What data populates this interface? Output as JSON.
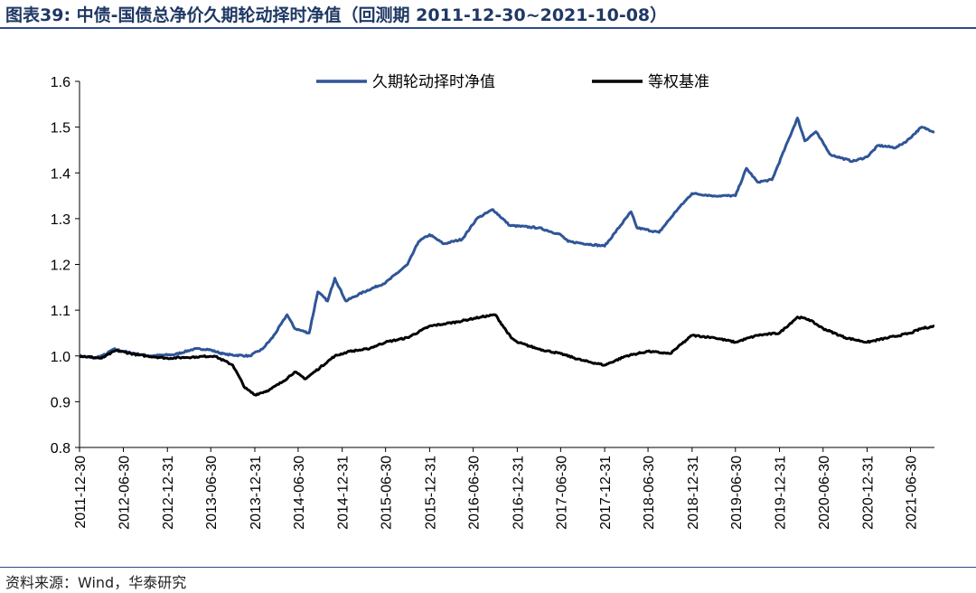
{
  "header": {
    "title": "图表39:  中债-国债总净价久期轮动择时净值（回测期 2011-12-30~2021-10-08）"
  },
  "footer": {
    "source": "资料来源：Wind，华泰研究"
  },
  "colors": {
    "strategy": "#2f5597",
    "benchmark": "#000000",
    "rule": "#2e4a8b"
  },
  "chart_data": {
    "type": "line",
    "title": "",
    "xlabel": "",
    "ylabel": "",
    "ylim": [
      0.8,
      1.6
    ],
    "yticks": [
      "0.8",
      "0.9",
      "1.0",
      "1.1",
      "1.2",
      "1.3",
      "1.4",
      "1.5",
      "1.6"
    ],
    "xlim": [
      "2011-12-30",
      "2021-10-08"
    ],
    "xticks": [
      "2011-12-30",
      "2012-06-30",
      "2012-12-31",
      "2013-06-30",
      "2013-12-31",
      "2014-06-30",
      "2014-12-31",
      "2015-06-30",
      "2015-12-31",
      "2016-06-30",
      "2016-12-31",
      "2017-06-30",
      "2017-12-31",
      "2018-06-30",
      "2018-12-31",
      "2019-06-30",
      "2019-12-31",
      "2020-06-30",
      "2020-12-31",
      "2021-06-30"
    ],
    "legend_position": "top",
    "series": [
      {
        "name": "久期轮动择时净值",
        "points": [
          [
            "2011-12-30",
            1.0
          ],
          [
            "2012-02-28",
            0.995
          ],
          [
            "2012-04-15",
            1.003
          ],
          [
            "2012-05-20",
            1.015
          ],
          [
            "2012-07-20",
            1.008
          ],
          [
            "2012-10-15",
            1.0
          ],
          [
            "2013-01-31",
            1.003
          ],
          [
            "2013-04-20",
            1.015
          ],
          [
            "2013-06-15",
            1.015
          ],
          [
            "2013-09-01",
            1.003
          ],
          [
            "2013-12-10",
            1.0
          ],
          [
            "2014-01-31",
            1.015
          ],
          [
            "2014-03-15",
            1.04
          ],
          [
            "2014-05-15",
            1.09
          ],
          [
            "2014-06-15",
            1.06
          ],
          [
            "2014-08-15",
            1.05
          ],
          [
            "2014-09-20",
            1.14
          ],
          [
            "2014-10-31",
            1.12
          ],
          [
            "2014-11-30",
            1.17
          ],
          [
            "2015-01-15",
            1.12
          ],
          [
            "2015-03-31",
            1.14
          ],
          [
            "2015-06-30",
            1.16
          ],
          [
            "2015-09-30",
            1.2
          ],
          [
            "2015-11-15",
            1.25
          ],
          [
            "2015-12-31",
            1.265
          ],
          [
            "2016-02-28",
            1.245
          ],
          [
            "2016-05-15",
            1.255
          ],
          [
            "2016-07-15",
            1.3
          ],
          [
            "2016-09-20",
            1.32
          ],
          [
            "2016-11-30",
            1.285
          ],
          [
            "2017-03-31",
            1.28
          ],
          [
            "2017-06-30",
            1.265
          ],
          [
            "2017-07-31",
            1.25
          ],
          [
            "2017-12-31",
            1.24
          ],
          [
            "2018-04-20",
            1.315
          ],
          [
            "2018-05-15",
            1.28
          ],
          [
            "2018-08-15",
            1.27
          ],
          [
            "2018-10-31",
            1.32
          ],
          [
            "2018-12-31",
            1.355
          ],
          [
            "2019-03-31",
            1.35
          ],
          [
            "2019-06-30",
            1.35
          ],
          [
            "2019-08-15",
            1.41
          ],
          [
            "2019-09-30",
            1.38
          ],
          [
            "2019-11-30",
            1.385
          ],
          [
            "2020-03-15",
            1.52
          ],
          [
            "2020-04-15",
            1.47
          ],
          [
            "2020-05-31",
            1.49
          ],
          [
            "2020-07-31",
            1.44
          ],
          [
            "2020-10-31",
            1.425
          ],
          [
            "2020-12-31",
            1.435
          ],
          [
            "2021-02-15",
            1.46
          ],
          [
            "2021-04-30",
            1.455
          ],
          [
            "2021-06-15",
            1.47
          ],
          [
            "2021-08-15",
            1.5
          ],
          [
            "2021-10-08",
            1.49
          ]
        ]
      },
      {
        "name": "等权基准",
        "points": [
          [
            "2011-12-30",
            1.0
          ],
          [
            "2012-03-31",
            0.995
          ],
          [
            "2012-05-31",
            1.012
          ],
          [
            "2012-08-31",
            1.002
          ],
          [
            "2012-12-31",
            0.995
          ],
          [
            "2013-04-30",
            0.998
          ],
          [
            "2013-07-15",
            1.0
          ],
          [
            "2013-09-30",
            0.98
          ],
          [
            "2013-11-20",
            0.93
          ],
          [
            "2013-12-31",
            0.915
          ],
          [
            "2014-02-28",
            0.925
          ],
          [
            "2014-04-30",
            0.945
          ],
          [
            "2014-06-15",
            0.965
          ],
          [
            "2014-07-31",
            0.95
          ],
          [
            "2014-09-30",
            0.975
          ],
          [
            "2014-11-30",
            1.0
          ],
          [
            "2015-01-31",
            1.01
          ],
          [
            "2015-04-15",
            1.015
          ],
          [
            "2015-06-30",
            1.03
          ],
          [
            "2015-09-30",
            1.04
          ],
          [
            "2015-12-31",
            1.065
          ],
          [
            "2016-02-28",
            1.07
          ],
          [
            "2016-04-30",
            1.075
          ],
          [
            "2016-06-15",
            1.08
          ],
          [
            "2016-07-31",
            1.085
          ],
          [
            "2016-09-30",
            1.09
          ],
          [
            "2016-12-05",
            1.04
          ],
          [
            "2016-12-31",
            1.03
          ],
          [
            "2017-03-31",
            1.015
          ],
          [
            "2017-06-30",
            1.005
          ],
          [
            "2017-09-30",
            0.99
          ],
          [
            "2017-12-31",
            0.98
          ],
          [
            "2018-03-31",
            1.0
          ],
          [
            "2018-06-30",
            1.01
          ],
          [
            "2018-09-30",
            1.005
          ],
          [
            "2018-12-31",
            1.045
          ],
          [
            "2019-03-31",
            1.04
          ],
          [
            "2019-06-30",
            1.03
          ],
          [
            "2019-09-30",
            1.045
          ],
          [
            "2019-12-31",
            1.05
          ],
          [
            "2020-03-15",
            1.085
          ],
          [
            "2020-04-30",
            1.08
          ],
          [
            "2020-06-30",
            1.06
          ],
          [
            "2020-09-30",
            1.04
          ],
          [
            "2020-12-31",
            1.03
          ],
          [
            "2021-03-31",
            1.04
          ],
          [
            "2021-06-30",
            1.05
          ],
          [
            "2021-08-15",
            1.06
          ],
          [
            "2021-10-08",
            1.065
          ]
        ]
      }
    ]
  }
}
